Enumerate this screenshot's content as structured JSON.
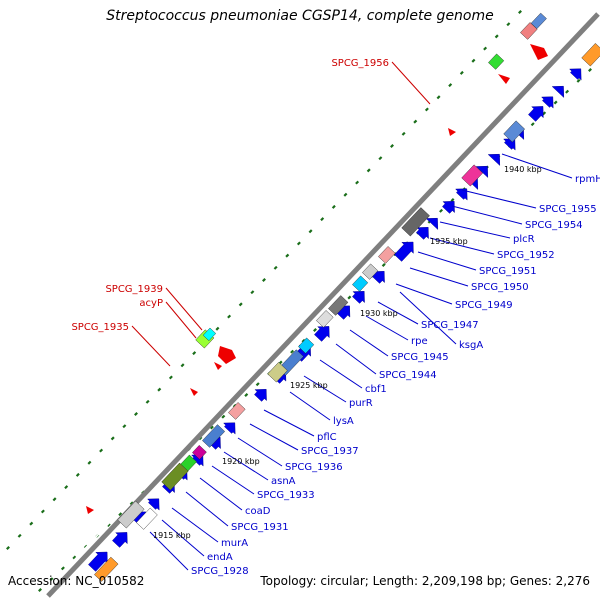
{
  "title": "Streptococcus pneumoniae CGSP14, complete genome",
  "accession": "Accession: NC_010582",
  "topology": "Topology: circular; Length: 2,209,198 bp; Genes: 2,276",
  "colors": {
    "backbone": "#7f7f7f",
    "forward_gene": "#0000ee",
    "label_blue": "#0000cc",
    "label_red": "#cc0000",
    "tick_green": "#1a6e1a"
  },
  "scale_labels": [
    "1915 kbp",
    "1920 kbp",
    "1925 kbp",
    "1930 kbp",
    "1935 kbp",
    "1940 kbp"
  ],
  "genes_blue": [
    "SPCG_1928",
    "endA",
    "murA",
    "SPCG_1931",
    "coaD",
    "SPCG_1933",
    "asnA",
    "SPCG_1936",
    "SPCG_1937",
    "pflC",
    "lysA",
    "purR",
    "cbf1",
    "SPCG_1944",
    "SPCG_1945",
    "rpe",
    "ksgA",
    "SPCG_1947",
    "SPCG_1949",
    "SPCG_1950",
    "SPCG_1951",
    "SPCG_1952",
    "plcR",
    "SPCG_1954",
    "SPCG_1955",
    "rpmH"
  ],
  "genes_red": [
    "SPCG_1956",
    "SPCG_1939",
    "acyP",
    "SPCG_1935"
  ]
}
